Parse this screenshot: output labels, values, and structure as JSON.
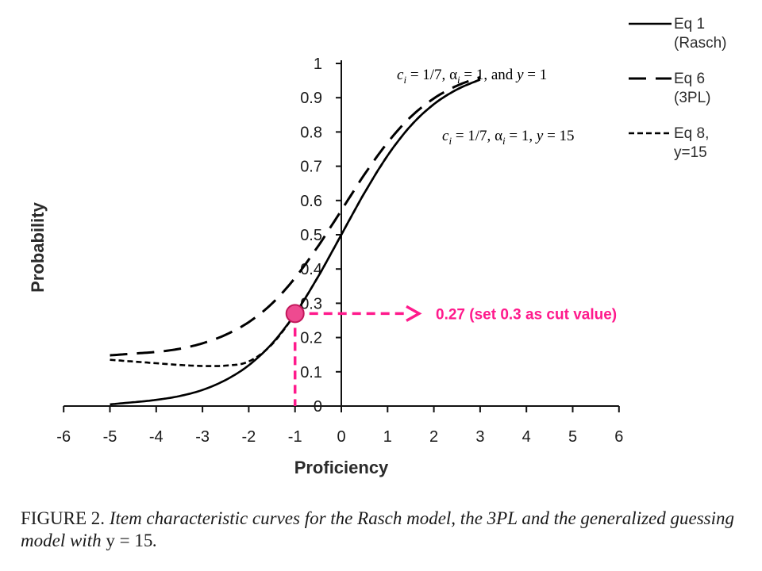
{
  "chart_data": {
    "type": "line",
    "xlabel": "Proficiency",
    "ylabel": "Probability",
    "xlim": [
      -6,
      6
    ],
    "ylim": [
      0,
      1
    ],
    "xticks": [
      "-6",
      "-5",
      "-4",
      "-3",
      "-2",
      "-1",
      "0",
      "1",
      "2",
      "3",
      "4",
      "5",
      "6"
    ],
    "yticks": [
      "0",
      "0.1",
      "0.2",
      "0.3",
      "0.4",
      "0.5",
      "0.6",
      "0.7",
      "0.8",
      "0.9",
      "1"
    ],
    "series": [
      {
        "name": "Eq 1 (Rasch)",
        "legend_lines": [
          "Eq 1",
          "(Rasch)"
        ],
        "style": "solid",
        "x": [
          -5,
          -4.5,
          -4,
          -3.5,
          -3,
          -2.5,
          -2,
          -1.5,
          -1,
          -0.5,
          0,
          0.5,
          1,
          1.5,
          2,
          2.5,
          3
        ],
        "y": [
          0.005,
          0.011,
          0.018,
          0.029,
          0.047,
          0.076,
          0.119,
          0.182,
          0.269,
          0.378,
          0.5,
          0.622,
          0.731,
          0.818,
          0.881,
          0.924,
          0.953
        ]
      },
      {
        "name": "Eq 6 (3PL)",
        "legend_lines": [
          "Eq 6",
          "(3PL)"
        ],
        "style": "long-dash",
        "x": [
          -5,
          -4.5,
          -4,
          -3.5,
          -3,
          -2.5,
          -2,
          -1.5,
          -1,
          -0.5,
          0,
          0.5,
          1,
          1.5,
          2,
          2.5,
          3
        ],
        "y": [
          0.148,
          0.153,
          0.158,
          0.167,
          0.183,
          0.208,
          0.245,
          0.299,
          0.374,
          0.467,
          0.571,
          0.676,
          0.769,
          0.844,
          0.898,
          0.935,
          0.96
        ]
      },
      {
        "name": "Eq 8, y=15",
        "legend_lines": [
          "Eq 8,",
          "y=15"
        ],
        "style": "short-dash",
        "x": [
          -5,
          -4.5,
          -4,
          -3.5,
          -3,
          -2.5,
          -2,
          -1.5,
          -1,
          -0.5,
          0,
          0.5,
          1,
          1.5,
          2,
          2.5,
          3
        ],
        "y": [
          0.135,
          0.13,
          0.125,
          0.12,
          0.117,
          0.118,
          0.13,
          0.18,
          0.269,
          0.378,
          0.5,
          0.622,
          0.731,
          0.818,
          0.881,
          0.924,
          0.953
        ]
      }
    ],
    "formulas": [
      {
        "c": "c",
        "i": "i",
        "eq1": " = 1/7,  ",
        "alpha": "α",
        "eq2": " = 1,  and ",
        "y": "y",
        "eq3": " = 1"
      },
      {
        "c": "c",
        "i": "i",
        "eq1": " = 1/7,  ",
        "alpha": "α",
        "eq2": " = 1, ",
        "y": "y",
        "eq3": " = 15"
      }
    ],
    "annotation": {
      "text": "0.27 (set 0.3 as cut value)",
      "point": {
        "x": -1,
        "y": 0.27
      },
      "color": "#ff1a8c"
    },
    "grid": false,
    "legend_position": "right"
  },
  "caption": {
    "label": "FIGURE 2. ",
    "text": "Item characteristic curves for the Rasch model, the 3PL and the generalized guessing model with ",
    "eq": "y = 15",
    "end": "."
  }
}
